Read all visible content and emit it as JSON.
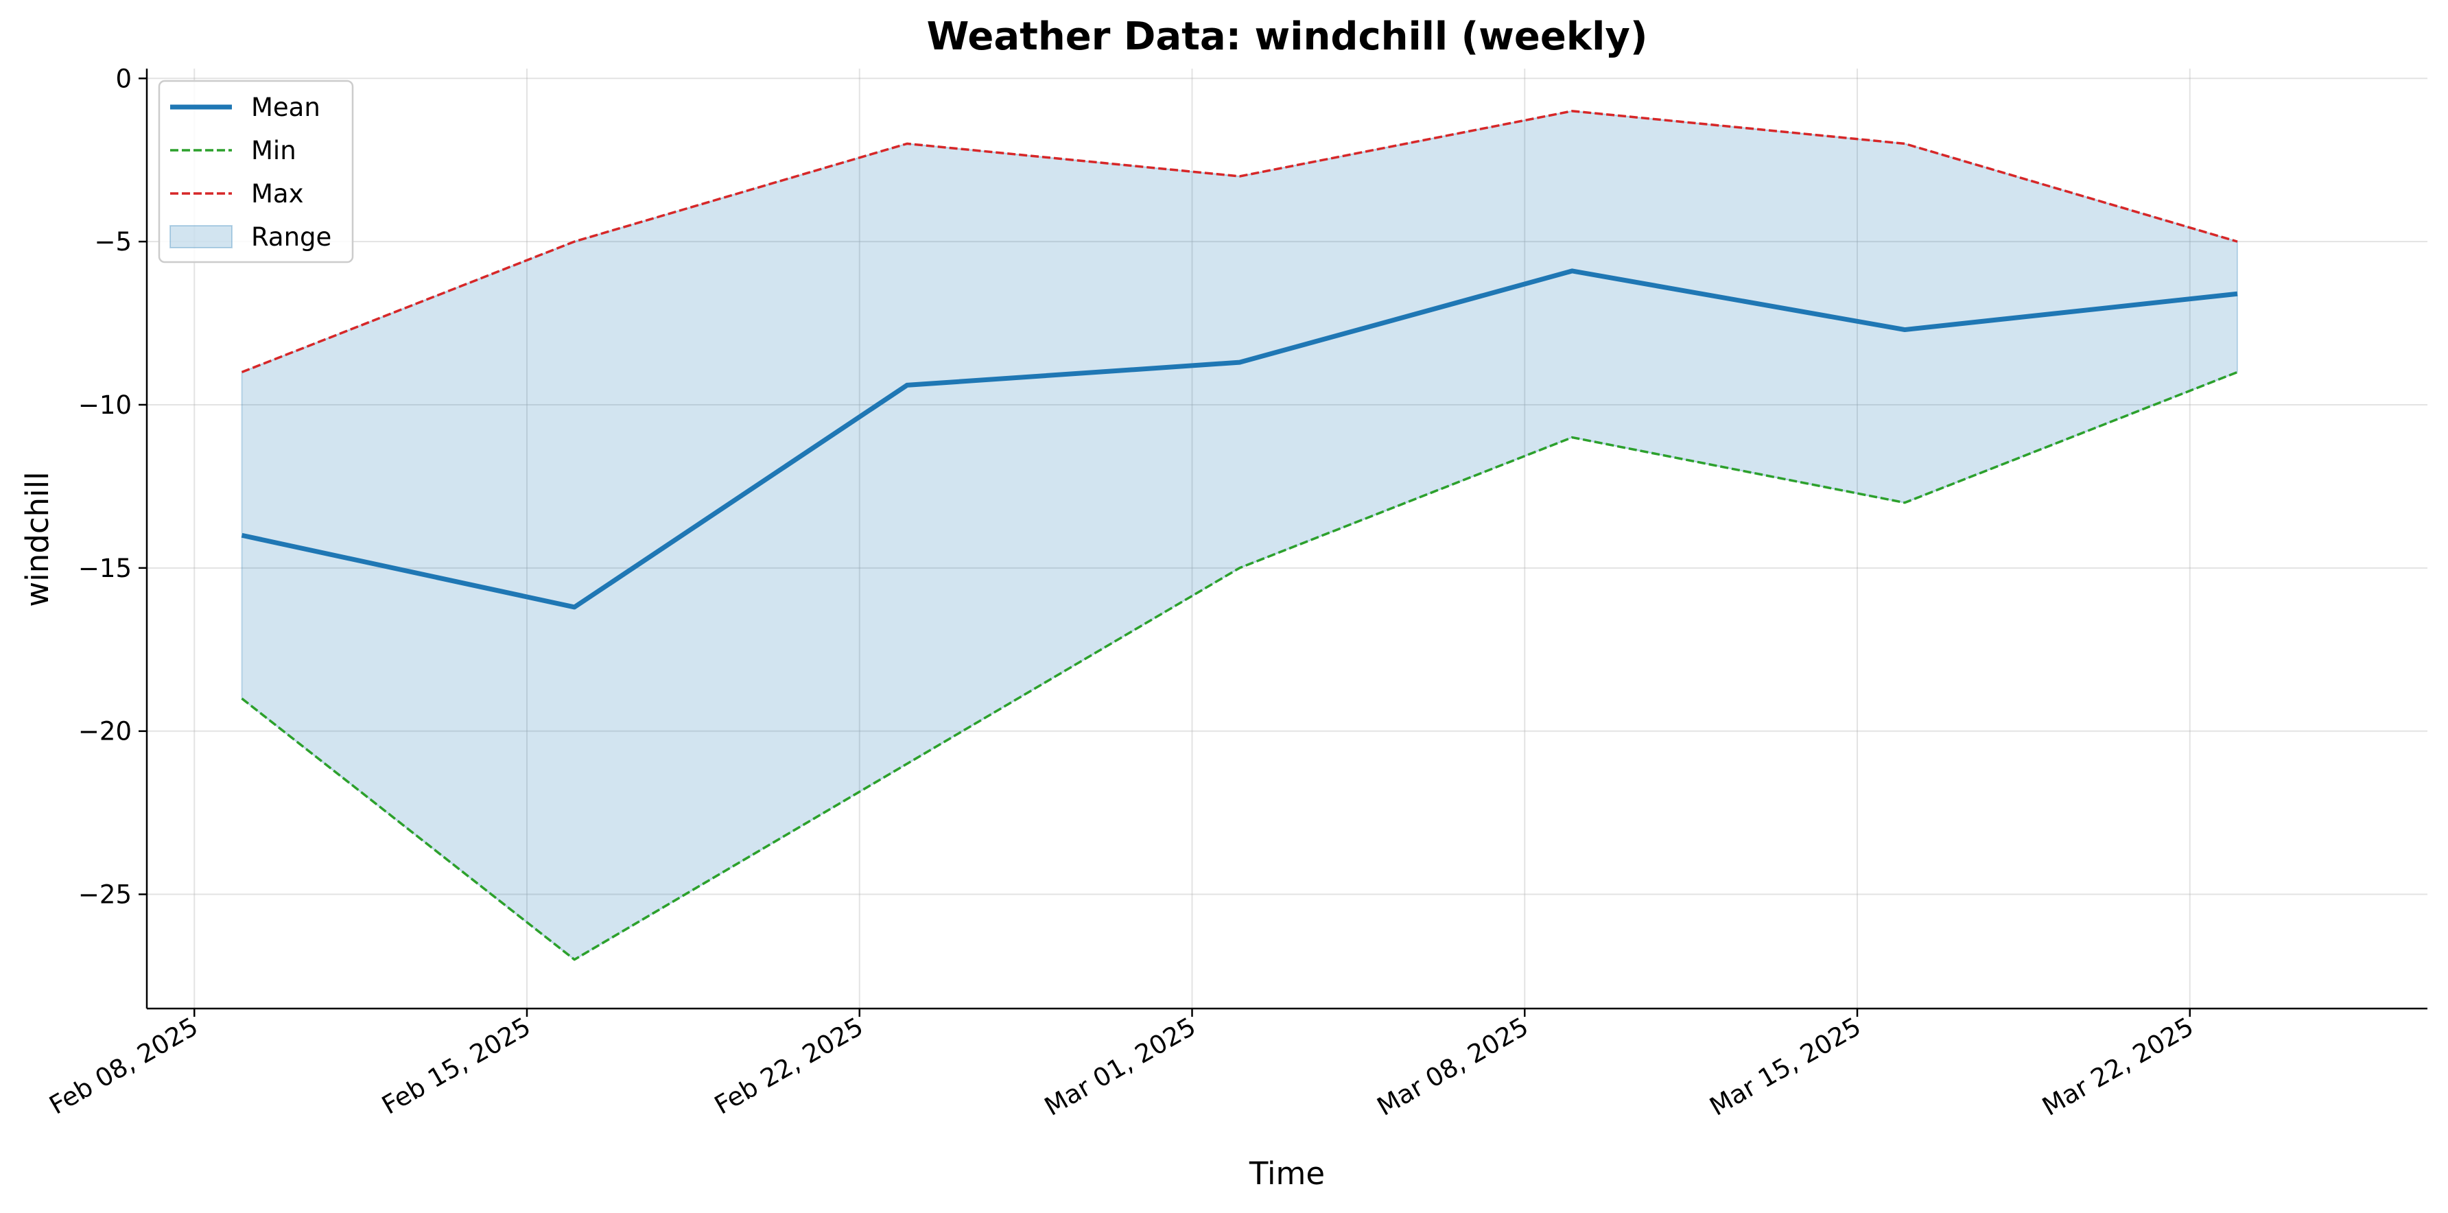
{
  "chart_data": {
    "type": "line",
    "title": "Weather Data: windchill (weekly)",
    "xlabel": "Time",
    "ylabel": "windchill",
    "x": [
      "2025-02-09",
      "2025-02-16",
      "2025-02-23",
      "2025-03-02",
      "2025-03-09",
      "2025-03-16",
      "2025-03-23"
    ],
    "series": [
      {
        "name": "Mean",
        "values": [
          -14.0,
          -16.2,
          -9.4,
          -8.7,
          -5.9,
          -7.7,
          -6.6
        ],
        "color": "#1f77b4",
        "style": "solid"
      },
      {
        "name": "Min",
        "values": [
          -19,
          -27,
          -21,
          -15,
          -11,
          -13,
          -9
        ],
        "color": "#2ca02c",
        "style": "dashed"
      },
      {
        "name": "Max",
        "values": [
          -9,
          -5,
          -2,
          -3,
          -1,
          -2,
          -5
        ],
        "color": "#d62728",
        "style": "dashed"
      }
    ],
    "range_band": {
      "name": "Range",
      "lower": "Min",
      "upper": "Max",
      "color": "#1f77b4",
      "opacity": 0.2
    },
    "xticks": [
      "Feb 08, 2025",
      "Feb 15, 2025",
      "Feb 22, 2025",
      "Mar 01, 2025",
      "Mar 08, 2025",
      "Mar 15, 2025",
      "Mar 22, 2025"
    ],
    "xtick_dates": [
      "2025-02-08",
      "2025-02-15",
      "2025-02-22",
      "2025-03-01",
      "2025-03-08",
      "2025-03-15",
      "2025-03-22"
    ],
    "xlim": [
      "2025-02-07",
      "2025-03-27"
    ],
    "yticks": [
      0,
      -5,
      -10,
      -15,
      -20,
      -25
    ],
    "ytick_labels": [
      "0",
      "−5",
      "−10",
      "−15",
      "−20",
      "−25"
    ],
    "ylim": [
      -28.5,
      0.3
    ],
    "grid": true,
    "legend_position": "top-left"
  }
}
